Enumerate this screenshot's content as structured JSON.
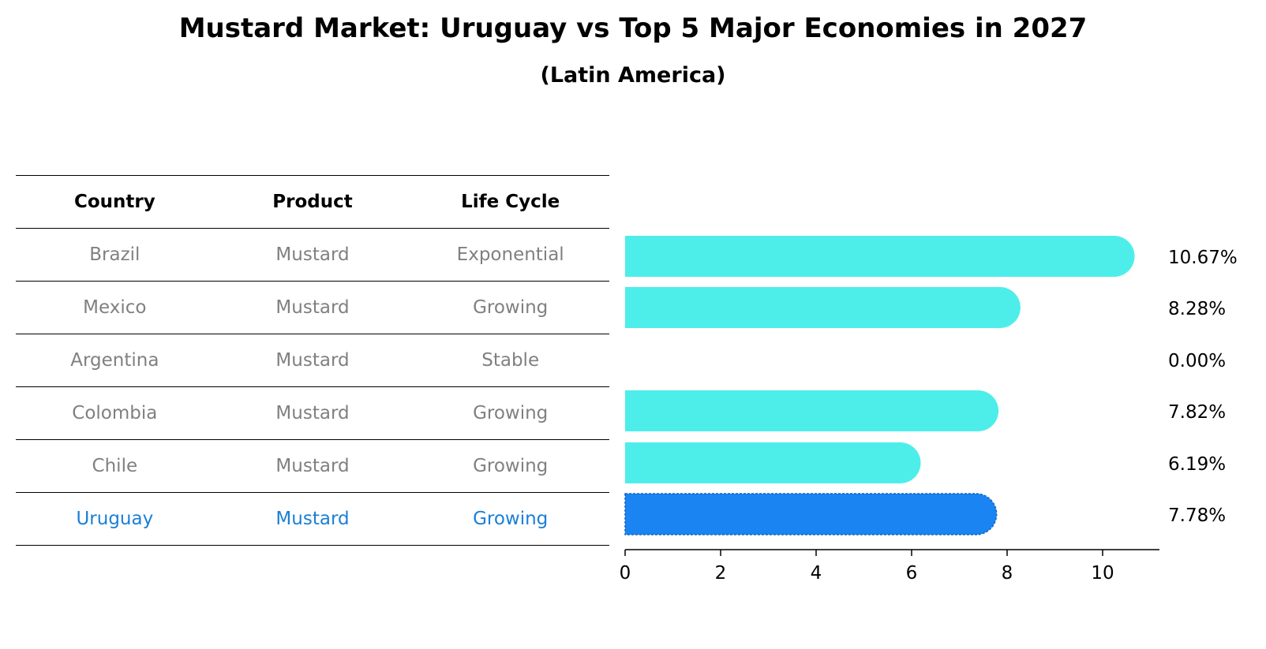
{
  "title": "Mustard Market: Uruguay vs Top 5 Major Economies in 2027",
  "subtitle": "(Latin America)",
  "table": {
    "headers": [
      "Country",
      "Product",
      "Life Cycle"
    ],
    "rows": [
      [
        "Brazil",
        "Mustard",
        "Exponential"
      ],
      [
        "Mexico",
        "Mustard",
        "Growing"
      ],
      [
        "Argentina",
        "Mustard",
        "Stable"
      ],
      [
        "Colombia",
        "Mustard",
        "Growing"
      ],
      [
        "Chile",
        "Mustard",
        "Growing"
      ],
      [
        "Uruguay",
        "Mustard",
        "Growing"
      ]
    ]
  },
  "chart_data": {
    "type": "bar",
    "orientation": "horizontal",
    "title": "Mustard Market: Uruguay vs Top 5 Major Economies in 2027",
    "subtitle": "(Latin America)",
    "categories": [
      "Brazil",
      "Mexico",
      "Argentina",
      "Colombia",
      "Chile",
      "Uruguay"
    ],
    "values": [
      10.67,
      8.28,
      0.0,
      7.82,
      6.19,
      7.78
    ],
    "value_labels": [
      "10.67%",
      "8.28%",
      "0.00%",
      "7.82%",
      "6.19%",
      "7.78%"
    ],
    "highlight": "Uruguay",
    "xlim": [
      0,
      11.2
    ],
    "xticks": [
      0,
      2,
      4,
      6,
      8,
      10
    ],
    "xlabel": "",
    "ylabel": "",
    "colors": {
      "default": "#4deeea",
      "highlight": "#1a84f2"
    }
  }
}
